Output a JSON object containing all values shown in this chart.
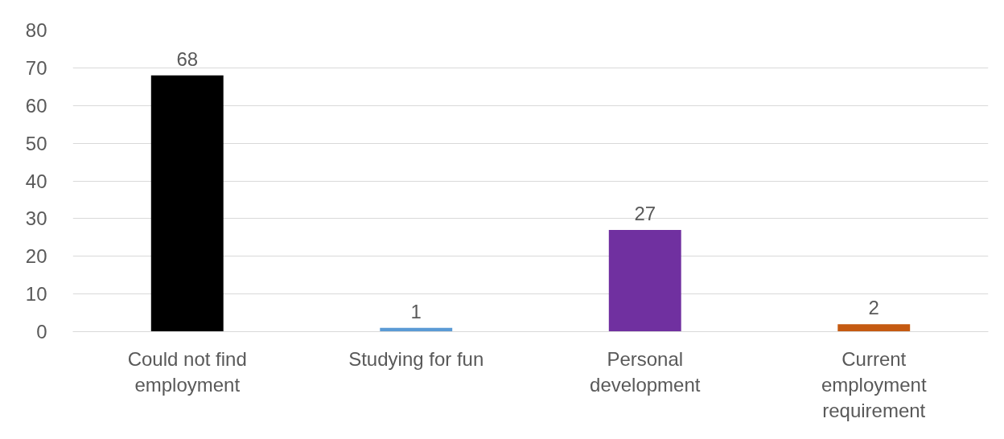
{
  "chart_data": {
    "type": "bar",
    "categories": [
      "Could not find employment",
      "Studying for fun",
      "Personal development",
      "Current employment requirement"
    ],
    "values": [
      68,
      1,
      27,
      2
    ],
    "colors": [
      "#000000",
      "#5b9bd5",
      "#7030a0",
      "#c55a11"
    ],
    "ylim": [
      0,
      80
    ],
    "yticks": [
      0,
      10,
      20,
      30,
      40,
      50,
      60,
      70,
      80
    ],
    "grid": "y",
    "data_labels": true
  }
}
